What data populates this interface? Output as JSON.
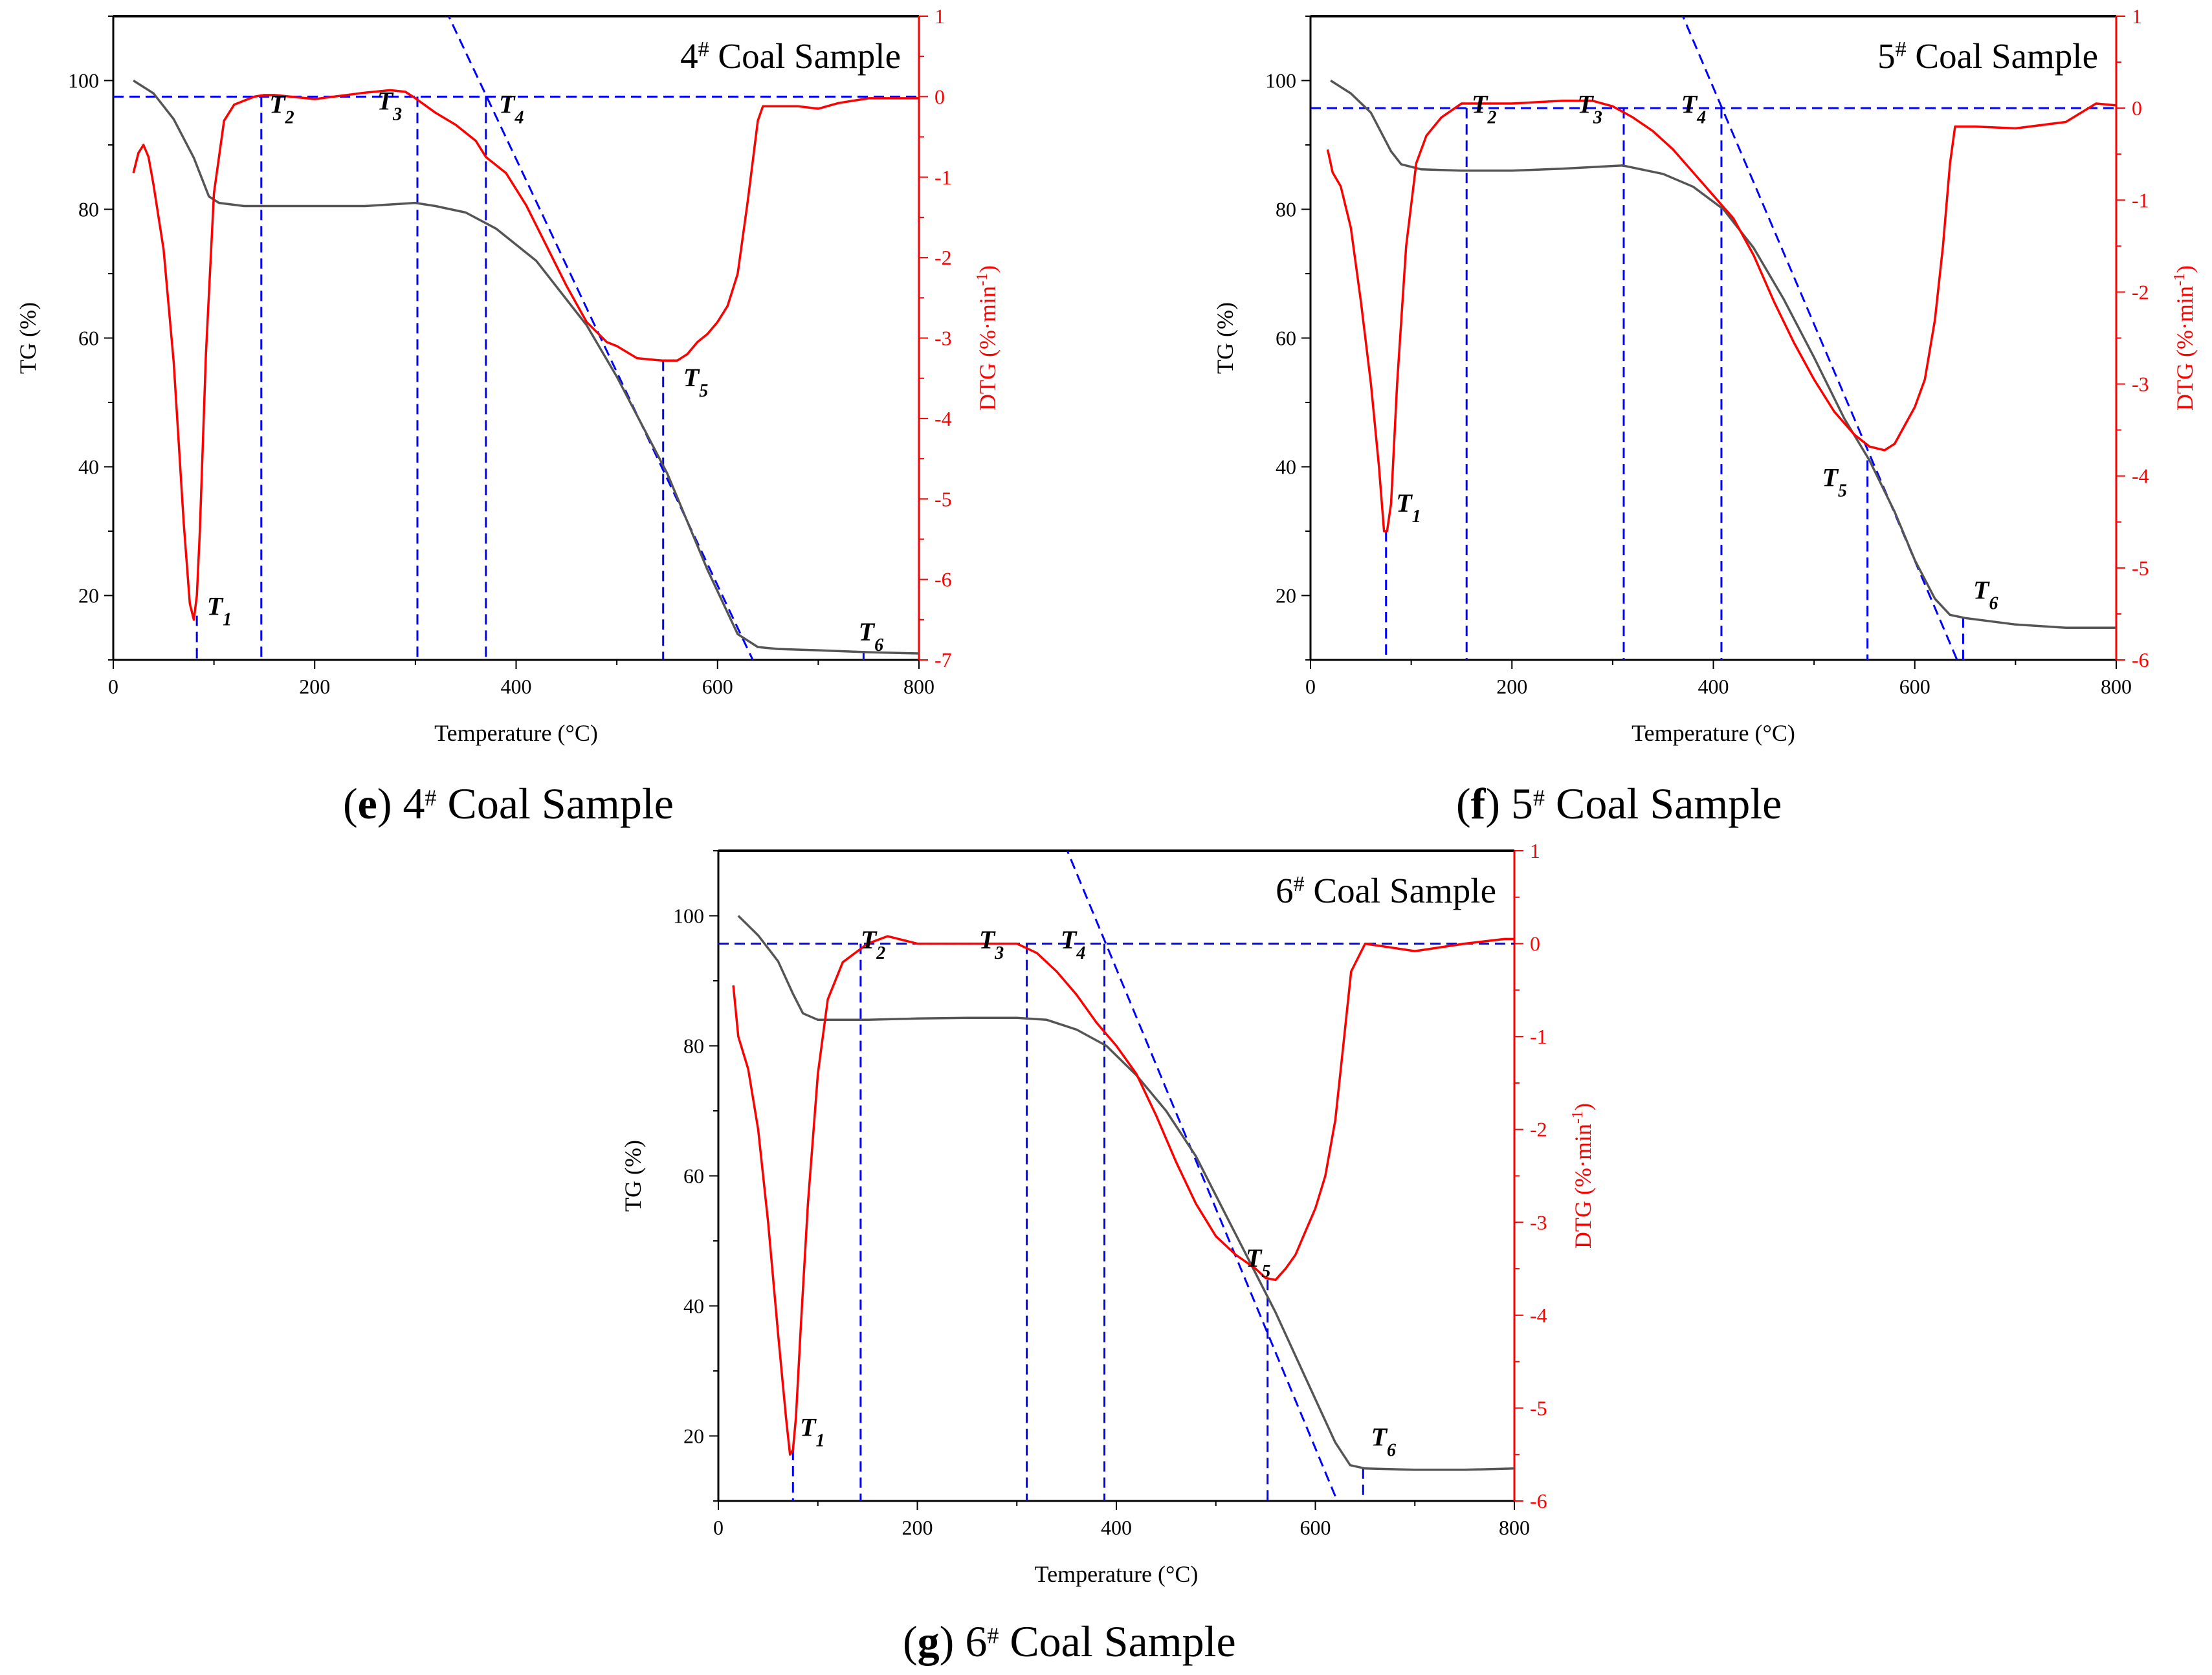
{
  "colors": {
    "tg": "#555555",
    "dtg": "#ff0000",
    "guides": "#0000ff",
    "axis": "#000000"
  },
  "chart_data": [
    {
      "type": "line",
      "id": "e",
      "title_number": "4",
      "title_sup": "#",
      "title_text": " Coal Sample",
      "caption_letter": "e",
      "caption_text": "4",
      "caption_sup": "#",
      "caption_rest": " Coal Sample",
      "xlabel": "Temperature (°C)",
      "ylabel_left": "TG (%)",
      "ylabel_right_prefix": "DTG (%·min",
      "ylabel_right_sup": "-1",
      "ylabel_right_suffix": ")",
      "xlim": [
        0,
        800
      ],
      "ylim_left": [
        10,
        110
      ],
      "ylim_right": [
        -7,
        1
      ],
      "x_ticks": [
        "0",
        "200",
        "400",
        "600",
        "800"
      ],
      "x_tick_values": [
        0,
        200,
        400,
        600,
        800
      ],
      "left_ticks": [
        "20",
        "40",
        "60",
        "80",
        "100"
      ],
      "left_tick_values": [
        20,
        40,
        60,
        80,
        100
      ],
      "right_ticks": [
        "1",
        "0",
        "-1",
        "-2",
        "-3",
        "-4",
        "-5",
        "-6",
        "-7"
      ],
      "right_tick_values": [
        1,
        0,
        -1,
        -2,
        -3,
        -4,
        -5,
        -6,
        -7
      ],
      "series": [
        {
          "key": "tg",
          "axis": "left",
          "x": [
            20,
            40,
            60,
            80,
            95,
            105,
            130,
            200,
            250,
            300,
            320,
            350,
            380,
            420,
            470,
            500,
            550,
            590,
            620,
            640,
            660,
            700,
            750,
            800
          ],
          "y": [
            100,
            98,
            94,
            88,
            82,
            81,
            80.5,
            80.5,
            80.5,
            81,
            80.5,
            79.5,
            77,
            72,
            62,
            54,
            39,
            24,
            14,
            12,
            11.7,
            11.5,
            11.2,
            11
          ]
        },
        {
          "key": "dtg",
          "axis": "right",
          "x": [
            20,
            25,
            30,
            35,
            40,
            50,
            60,
            70,
            76,
            80,
            83,
            86,
            92,
            100,
            110,
            120,
            130,
            140,
            150,
            160,
            200,
            250,
            275,
            290,
            300,
            320,
            340,
            360,
            370,
            390,
            410,
            430,
            450,
            470,
            490,
            500,
            520,
            545,
            560,
            570,
            580,
            590,
            600,
            610,
            620,
            630,
            640,
            645,
            660,
            680,
            700,
            720,
            750,
            780,
            800
          ],
          "y": [
            -0.95,
            -0.7,
            -0.6,
            -0.75,
            -1.1,
            -1.9,
            -3.3,
            -5.3,
            -6.3,
            -6.5,
            -6.2,
            -5.4,
            -3.2,
            -1.2,
            -0.3,
            -0.1,
            -0.05,
            0,
            0.02,
            0.02,
            -0.03,
            0.05,
            0.08,
            0.06,
            -0.02,
            -0.2,
            -0.35,
            -0.55,
            -0.75,
            -0.95,
            -1.35,
            -1.85,
            -2.35,
            -2.8,
            -3.05,
            -3.1,
            -3.25,
            -3.28,
            -3.28,
            -3.2,
            -3.05,
            -2.95,
            -2.8,
            -2.6,
            -2.2,
            -1.3,
            -0.3,
            -0.12,
            -0.12,
            -0.12,
            -0.15,
            -0.08,
            -0.02,
            -0.02,
            -0.02
          ]
        }
      ],
      "guides": {
        "hline_right_value": 0,
        "tangent_left_points": [
          [
            330,
            111
          ],
          [
            635,
            10
          ]
        ],
        "vlines": [
          {
            "x": 83,
            "top_axis": "right",
            "top_value": -6.45
          },
          {
            "x": 147,
            "top_axis": "right",
            "top_value": 0
          },
          {
            "x": 302,
            "top_axis": "right",
            "top_value": 0
          },
          {
            "x": 370,
            "top_axis": "right",
            "top_value": 0
          },
          {
            "x": 546,
            "top_axis": "right",
            "top_value": -3.28
          },
          {
            "x": 745,
            "top_axis": "left",
            "top_value": 11.4
          }
        ]
      },
      "markers": [
        {
          "letter": "T",
          "sub": "1",
          "x": 93,
          "yl": 17
        },
        {
          "letter": "T",
          "sub": "2",
          "x": 155,
          "yl": 95
        },
        {
          "letter": "T",
          "sub": "3",
          "x": 262,
          "yl": 95.5
        },
        {
          "letter": "T",
          "sub": "4",
          "x": 383,
          "yl": 95
        },
        {
          "letter": "T",
          "sub": "5",
          "x": 566,
          "yl": 52.5
        },
        {
          "letter": "T",
          "sub": "6",
          "x": 740,
          "yl": 13
        }
      ]
    },
    {
      "type": "line",
      "id": "f",
      "title_number": "5",
      "title_sup": "#",
      "title_text": " Coal Sample",
      "caption_letter": "f",
      "caption_text": "5",
      "caption_sup": "#",
      "caption_rest": " Coal Sample",
      "xlabel": "Temperature (°C)",
      "ylabel_left": "TG (%)",
      "ylabel_right_prefix": "DTG (%·min",
      "ylabel_right_sup": "-1",
      "ylabel_right_suffix": ")",
      "xlim": [
        0,
        800
      ],
      "ylim_left": [
        10,
        110
      ],
      "ylim_right": [
        -6,
        1
      ],
      "x_ticks": [
        "0",
        "200",
        "400",
        "600",
        "800"
      ],
      "x_tick_values": [
        0,
        200,
        400,
        600,
        800
      ],
      "left_ticks": [
        "20",
        "40",
        "60",
        "80",
        "100"
      ],
      "left_tick_values": [
        20,
        40,
        60,
        80,
        100
      ],
      "right_ticks": [
        "1",
        "0",
        "-1",
        "-2",
        "-3",
        "-4",
        "-5",
        "-6"
      ],
      "right_tick_values": [
        1,
        0,
        -1,
        -2,
        -3,
        -4,
        -5,
        -6
      ],
      "series": [
        {
          "key": "tg",
          "axis": "left",
          "x": [
            20,
            40,
            60,
            80,
            90,
            110,
            150,
            200,
            250,
            310,
            350,
            380,
            410,
            440,
            470,
            500,
            530,
            555,
            580,
            600,
            620,
            635,
            650,
            700,
            750,
            800
          ],
          "y": [
            100,
            98,
            95,
            89,
            87,
            86.2,
            86,
            86,
            86.3,
            86.8,
            85.5,
            83.5,
            80,
            74,
            66,
            57,
            47.5,
            41,
            33,
            25.5,
            19.5,
            17,
            16.5,
            15.5,
            15,
            15
          ]
        },
        {
          "key": "dtg",
          "axis": "right",
          "x": [
            17,
            22,
            30,
            40,
            50,
            60,
            68,
            73,
            76,
            80,
            86,
            95,
            105,
            115,
            130,
            150,
            200,
            250,
            280,
            300,
            320,
            340,
            360,
            380,
            400,
            420,
            440,
            460,
            480,
            500,
            520,
            540,
            555,
            570,
            580,
            590,
            600,
            610,
            620,
            628,
            635,
            640,
            660,
            700,
            750,
            780,
            800
          ],
          "y": [
            -0.45,
            -0.7,
            -0.85,
            -1.3,
            -2.1,
            -3.0,
            -3.9,
            -4.6,
            -4.6,
            -4.3,
            -3.0,
            -1.5,
            -0.6,
            -0.3,
            -0.1,
            0.05,
            0.05,
            0.08,
            0.08,
            0.02,
            -0.1,
            -0.25,
            -0.45,
            -0.7,
            -0.95,
            -1.2,
            -1.6,
            -2.1,
            -2.55,
            -2.95,
            -3.3,
            -3.55,
            -3.68,
            -3.72,
            -3.65,
            -3.45,
            -3.25,
            -2.95,
            -2.3,
            -1.5,
            -0.6,
            -0.2,
            -0.2,
            -0.22,
            -0.15,
            0.05,
            0.03
          ]
        }
      ],
      "guides": {
        "hline_right_value": 0,
        "tangent_left_points": [
          [
            367,
            111
          ],
          [
            642,
            10
          ]
        ],
        "vlines": [
          {
            "x": 75,
            "top_axis": "right",
            "top_value": -4.6
          },
          {
            "x": 155,
            "top_axis": "right",
            "top_value": 0
          },
          {
            "x": 311,
            "top_axis": "right",
            "top_value": 0
          },
          {
            "x": 408,
            "top_axis": "right",
            "top_value": 0
          },
          {
            "x": 553,
            "top_axis": "left",
            "top_value": 41
          },
          {
            "x": 648,
            "top_axis": "left",
            "top_value": 16.6
          }
        ]
      },
      "markers": [
        {
          "letter": "T",
          "sub": "1",
          "x": 85,
          "yl": 33
        },
        {
          "letter": "T",
          "sub": "2",
          "x": 160,
          "yl": 95
        },
        {
          "letter": "T",
          "sub": "3",
          "x": 265,
          "yl": 95
        },
        {
          "letter": "T",
          "sub": "4",
          "x": 368,
          "yl": 95
        },
        {
          "letter": "T",
          "sub": "5",
          "x": 508,
          "yl": 37
        },
        {
          "letter": "T",
          "sub": "6",
          "x": 658,
          "yl": 19.5
        }
      ]
    },
    {
      "type": "line",
      "id": "g",
      "title_number": "6",
      "title_sup": "#",
      "title_text": " Coal Sample",
      "caption_letter": "g",
      "caption_text": "6",
      "caption_sup": "#",
      "caption_rest": " Coal Sample",
      "xlabel": "Temperature (°C)",
      "ylabel_left": "TG (%)",
      "ylabel_right_prefix": "DTG (%·min",
      "ylabel_right_sup": "-1",
      "ylabel_right_suffix": ")",
      "xlim": [
        0,
        800
      ],
      "ylim_left": [
        10,
        110
      ],
      "ylim_right": [
        -6,
        1
      ],
      "x_ticks": [
        "0",
        "200",
        "400",
        "600",
        "800"
      ],
      "x_tick_values": [
        0,
        200,
        400,
        600,
        800
      ],
      "left_ticks": [
        "20",
        "40",
        "60",
        "80",
        "100"
      ],
      "left_tick_values": [
        20,
        40,
        60,
        80,
        100
      ],
      "right_ticks": [
        "1",
        "0",
        "-1",
        "-2",
        "-3",
        "-4",
        "-5",
        "-6"
      ],
      "right_tick_values": [
        1,
        0,
        -1,
        -2,
        -3,
        -4,
        -5,
        -6
      ],
      "series": [
        {
          "key": "tg",
          "axis": "left",
          "x": [
            20,
            40,
            60,
            75,
            85,
            100,
            150,
            200,
            250,
            300,
            330,
            360,
            390,
            420,
            450,
            480,
            510,
            540,
            560,
            590,
            620,
            635,
            650,
            700,
            750,
            800
          ],
          "y": [
            100,
            97,
            93,
            88,
            85,
            84,
            84,
            84.2,
            84.3,
            84.3,
            84,
            82.5,
            80,
            75.5,
            70,
            63,
            54,
            45,
            39,
            29,
            19,
            15.5,
            15,
            14.8,
            14.8,
            15
          ]
        },
        {
          "key": "dtg",
          "axis": "right",
          "x": [
            15,
            20,
            30,
            40,
            50,
            60,
            68,
            72,
            75,
            78,
            83,
            90,
            100,
            110,
            125,
            150,
            170,
            200,
            250,
            300,
            320,
            340,
            360,
            380,
            400,
            420,
            440,
            460,
            480,
            500,
            520,
            540,
            550,
            560,
            570,
            580,
            590,
            600,
            610,
            620,
            628,
            636,
            650,
            700,
            750,
            790,
            800
          ],
          "y": [
            -0.45,
            -1.0,
            -1.35,
            -2.0,
            -3.0,
            -4.2,
            -5.1,
            -5.5,
            -5.45,
            -5.1,
            -4.1,
            -2.8,
            -1.4,
            -0.6,
            -0.2,
            0,
            0.08,
            0,
            0,
            0,
            -0.1,
            -0.3,
            -0.55,
            -0.85,
            -1.1,
            -1.4,
            -1.85,
            -2.35,
            -2.8,
            -3.15,
            -3.35,
            -3.5,
            -3.6,
            -3.62,
            -3.5,
            -3.35,
            -3.1,
            -2.85,
            -2.5,
            -1.9,
            -1.1,
            -0.3,
            0,
            -0.08,
            0,
            0.05,
            0.05
          ]
        }
      ],
      "guides": {
        "hline_right_value": 0,
        "tangent_left_points": [
          [
            348,
            111
          ],
          [
            622,
            10
          ]
        ],
        "vlines": [
          {
            "x": 75,
            "top_axis": "right",
            "top_value": -5.45
          },
          {
            "x": 143,
            "top_axis": "right",
            "top_value": 0
          },
          {
            "x": 310,
            "top_axis": "right",
            "top_value": 0
          },
          {
            "x": 388,
            "top_axis": "right",
            "top_value": 0
          },
          {
            "x": 552,
            "top_axis": "right",
            "top_value": -3.62
          },
          {
            "x": 648,
            "top_axis": "left",
            "top_value": 15
          }
        ]
      },
      "markers": [
        {
          "letter": "T",
          "sub": "1",
          "x": 82,
          "yl": 20
        },
        {
          "letter": "T",
          "sub": "2",
          "x": 143,
          "yl": 95
        },
        {
          "letter": "T",
          "sub": "3",
          "x": 262,
          "yl": 95
        },
        {
          "letter": "T",
          "sub": "4",
          "x": 344,
          "yl": 95
        },
        {
          "letter": "T",
          "sub": "5",
          "x": 530,
          "yl": 46
        },
        {
          "letter": "T",
          "sub": "6",
          "x": 656,
          "yl": 18.5
        }
      ]
    }
  ]
}
